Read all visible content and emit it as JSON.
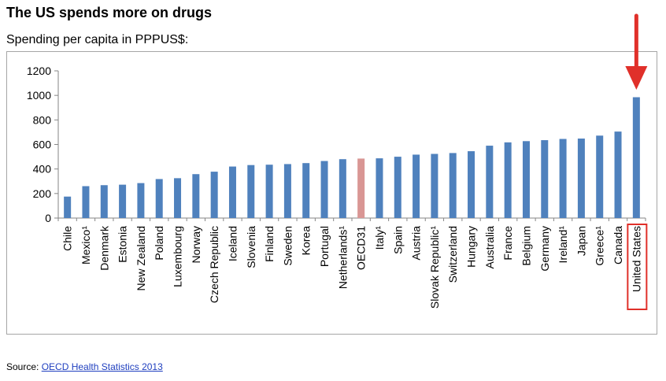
{
  "title": "The US spends more on drugs",
  "subtitle": "Spending per capita in PPPUS$:",
  "source": {
    "prefix": "Source: ",
    "link_text": "OECD Health Statistics 2013"
  },
  "colors": {
    "bar": "#4f81bd",
    "oecd_bar": "#d99694",
    "highlight": "#e0302a",
    "arrow": "#e0302a"
  },
  "chart_data": {
    "type": "bar",
    "title": "The US spends more on drugs",
    "ylabel": "Spending per capita in PPPUS$:",
    "ylim": [
      0,
      1200
    ],
    "yticks": [
      0,
      200,
      400,
      600,
      800,
      1000,
      1200
    ],
    "grid": false,
    "categories": [
      "Chile",
      "Mexico¹",
      "Denmark",
      "Estonia",
      "New Zealand",
      "Poland",
      "Luxembourg",
      "Norway",
      "Czech Republic",
      "Iceland",
      "Slovenia",
      "Finland",
      "Sweden",
      "Korea",
      "Portugal",
      "Netherlands¹",
      "OECD31",
      "Italy¹",
      "Spain",
      "Austria",
      "Slovak Republic¹",
      "Switzerland",
      "Hungary",
      "Australia",
      "France",
      "Belgium",
      "Germany",
      "Ireland¹",
      "Japan",
      "Greece¹",
      "Canada",
      "United States"
    ],
    "values": [
      175,
      260,
      268,
      272,
      285,
      318,
      325,
      358,
      378,
      420,
      432,
      435,
      440,
      448,
      465,
      480,
      485,
      487,
      500,
      517,
      523,
      530,
      545,
      590,
      617,
      627,
      635,
      645,
      648,
      672,
      705,
      985
    ],
    "highlighted_category": "OECD31",
    "boxed_category": "United States"
  }
}
